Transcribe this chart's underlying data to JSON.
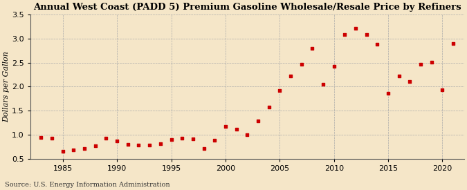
{
  "title": "Annual West Coast (PADD 5) Premium Gasoline Wholesale/Resale Price by Refiners",
  "ylabel": "Dollars per Gallon",
  "source": "Source: U.S. Energy Information Administration",
  "background_color": "#f5e6c8",
  "marker_color": "#cc0000",
  "years": [
    1983,
    1984,
    1985,
    1986,
    1987,
    1988,
    1989,
    1990,
    1991,
    1992,
    1993,
    1994,
    1995,
    1996,
    1997,
    1998,
    1999,
    2000,
    2001,
    2002,
    2003,
    2004,
    2005,
    2006,
    2007,
    2008,
    2009,
    2010,
    2011,
    2012,
    2013,
    2014,
    2015,
    2016,
    2017,
    2018,
    2019,
    2020,
    2021
  ],
  "values": [
    0.95,
    0.93,
    0.65,
    0.68,
    0.72,
    0.77,
    0.93,
    0.87,
    0.8,
    0.78,
    0.78,
    0.82,
    0.9,
    0.93,
    0.91,
    0.72,
    0.88,
    1.18,
    1.12,
    1.0,
    1.29,
    1.57,
    1.92,
    2.22,
    2.46,
    2.8,
    2.05,
    2.42,
    3.09,
    3.21,
    3.08,
    2.88,
    1.86,
    2.22,
    2.11,
    2.47,
    2.51,
    1.94,
    2.9
  ],
  "xlim": [
    1982,
    2022
  ],
  "ylim": [
    0.5,
    3.5
  ],
  "xticks": [
    1985,
    1990,
    1995,
    2000,
    2005,
    2010,
    2015,
    2020
  ],
  "yticks": [
    0.5,
    1.0,
    1.5,
    2.0,
    2.5,
    3.0,
    3.5
  ],
  "title_fontsize": 9.5,
  "label_fontsize": 8,
  "tick_fontsize": 8,
  "source_fontsize": 7
}
